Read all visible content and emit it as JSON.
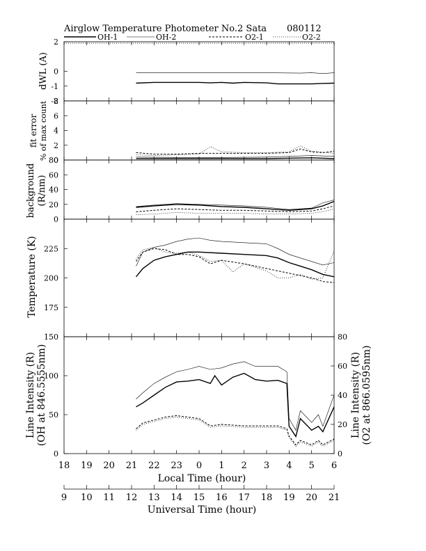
{
  "header": {
    "title": "Airglow Temperature Photometer No.2  Sata",
    "date": "080112"
  },
  "legend": [
    {
      "name": "OH-1",
      "style": "solid-thick",
      "color": "#000000"
    },
    {
      "name": "OH-2",
      "style": "solid-thin",
      "color": "#000000"
    },
    {
      "name": "O2-1",
      "style": "dashed",
      "color": "#000000"
    },
    {
      "name": "O2-2",
      "style": "dotted",
      "color": "#000000"
    }
  ],
  "axes": {
    "local_time": {
      "label": "Local Time (hour)",
      "ticks": [
        "18",
        "19",
        "20",
        "21",
        "22",
        "23",
        "0",
        "1",
        "2",
        "3",
        "4",
        "5",
        "6"
      ]
    },
    "universal_time": {
      "label": "Universal Time (hour)",
      "ticks": [
        "9",
        "10",
        "11",
        "12",
        "13",
        "14",
        "15",
        "16",
        "17",
        "18",
        "19",
        "20",
        "21"
      ]
    }
  },
  "chart_data": [
    {
      "type": "line",
      "id": "dwl",
      "ylabel": "dWL (A)",
      "ylim": [
        -2,
        2
      ],
      "yticks": [
        "2",
        "0",
        "-1",
        "-2"
      ],
      "ytick_values": [
        2,
        0,
        -1,
        -2
      ],
      "x_unit": "UT hour",
      "xlim": [
        9,
        21
      ],
      "series": [
        {
          "name": "OH-1",
          "x": [
            12.2,
            13,
            14,
            15,
            15.5,
            16,
            16.5,
            17,
            18,
            18.5,
            19,
            20,
            20.5,
            21
          ],
          "y": [
            -0.8,
            -0.75,
            -0.75,
            -0.75,
            -0.78,
            -0.75,
            -0.8,
            -0.75,
            -0.78,
            -0.85,
            -0.85,
            -0.85,
            -0.82,
            -0.8
          ]
        },
        {
          "name": "OH-2",
          "x": [
            12.2,
            14,
            16,
            18,
            19.5,
            20,
            20.5,
            21
          ],
          "y": [
            -0.1,
            -0.1,
            -0.1,
            -0.1,
            -0.12,
            -0.1,
            -0.15,
            -0.1
          ]
        },
        {
          "name": "O2-1",
          "x": [
            9,
            21
          ],
          "y": [
            2,
            2
          ]
        },
        {
          "name": "O2-2",
          "x": [
            9,
            21
          ],
          "y": [
            1.9,
            1.9
          ]
        }
      ]
    },
    {
      "type": "line",
      "id": "fit",
      "ylabel": "fit error",
      "ylabel2": "% of max count",
      "ylim": [
        0,
        8
      ],
      "yticks": [
        "8",
        "6",
        "4",
        "2",
        "0"
      ],
      "ytick_values": [
        8,
        6,
        4,
        2,
        0
      ],
      "x_unit": "UT hour",
      "xlim": [
        9,
        21
      ],
      "series": [
        {
          "name": "OH-1",
          "x": [
            12.2,
            14,
            16,
            18,
            19,
            20,
            21
          ],
          "y": [
            0.2,
            0.2,
            0.2,
            0.2,
            0.25,
            0.3,
            0.2
          ]
        },
        {
          "name": "OH-2",
          "x": [
            12.2,
            14,
            16,
            18,
            19,
            20,
            21
          ],
          "y": [
            0.4,
            0.35,
            0.35,
            0.4,
            0.5,
            0.6,
            0.5
          ]
        },
        {
          "name": "O2-1",
          "x": [
            12.2,
            13,
            14,
            15,
            16,
            17,
            18,
            19,
            19.5,
            20,
            20.5,
            21
          ],
          "y": [
            1,
            0.8,
            0.8,
            0.9,
            0.9,
            0.9,
            0.9,
            1.0,
            1.5,
            1.1,
            1.0,
            1.2
          ]
        },
        {
          "name": "O2-2",
          "x": [
            12.2,
            13,
            14,
            15,
            15.5,
            16,
            17,
            18,
            19,
            19.5,
            20,
            21
          ],
          "y": [
            0.7,
            0.6,
            0.7,
            0.8,
            1.8,
            1.1,
            1.0,
            1.0,
            1.1,
            1.9,
            1.2,
            0.9
          ]
        }
      ]
    },
    {
      "type": "line",
      "id": "bg",
      "ylabel": "background",
      "ylabel2": "(R/nm)",
      "ylim": [
        0,
        80
      ],
      "yticks": [
        "80",
        "60",
        "40",
        "20",
        "0"
      ],
      "ytick_values": [
        80,
        60,
        40,
        20,
        0
      ],
      "x_unit": "UT hour",
      "xlim": [
        9,
        21
      ],
      "series": [
        {
          "name": "OH-1",
          "x": [
            12.2,
            13,
            14,
            15,
            16,
            17,
            18,
            19,
            20,
            20.5,
            21
          ],
          "y": [
            16,
            18,
            20,
            19,
            17,
            16,
            14,
            12,
            14,
            18,
            24
          ]
        },
        {
          "name": "OH-2",
          "x": [
            12.2,
            13,
            14,
            15,
            16,
            17,
            18,
            19,
            20,
            20.5,
            21
          ],
          "y": [
            17,
            19,
            21,
            20,
            19,
            18,
            16,
            13,
            15,
            22,
            26
          ]
        },
        {
          "name": "O2-1",
          "x": [
            12.2,
            13,
            14,
            15,
            16,
            17,
            18,
            19,
            20,
            20.5,
            21
          ],
          "y": [
            10,
            12,
            14,
            13,
            12,
            12,
            11,
            10,
            11,
            14,
            18
          ]
        },
        {
          "name": "O2-2",
          "x": [
            12.2,
            13,
            14,
            15,
            16,
            17,
            18,
            19,
            20,
            20.5,
            21
          ],
          "y": [
            6,
            7,
            9,
            8,
            8,
            8,
            7,
            7,
            8,
            10,
            14
          ]
        }
      ]
    },
    {
      "type": "line",
      "id": "temp",
      "ylabel": "Temperature (K)",
      "ylim": [
        150,
        250
      ],
      "yticks": [
        "225",
        "200",
        "175"
      ],
      "ytick_values": [
        225,
        200,
        175
      ],
      "x_unit": "UT hour",
      "xlim": [
        9,
        21
      ],
      "series": [
        {
          "name": "OH-1",
          "x": [
            12.2,
            12.5,
            13,
            13.5,
            14,
            14.5,
            15,
            16,
            17,
            18,
            18.5,
            19,
            19.5,
            20,
            20.5,
            21
          ],
          "y": [
            201,
            208,
            215,
            218,
            220,
            222,
            222,
            221,
            220,
            219,
            217,
            213,
            210,
            207,
            203,
            201
          ]
        },
        {
          "name": "OH-2",
          "x": [
            12.2,
            12.5,
            13,
            13.5,
            14,
            14.5,
            15,
            15.5,
            16,
            17,
            18,
            18.5,
            19,
            19.5,
            20,
            20.5,
            21
          ],
          "y": [
            210,
            222,
            226,
            228,
            231,
            233,
            234,
            232,
            231,
            230,
            229,
            225,
            220,
            217,
            214,
            211,
            213
          ]
        },
        {
          "name": "O2-1",
          "x": [
            12.2,
            12.5,
            13,
            13.5,
            14,
            14.5,
            15,
            15.5,
            16,
            17,
            18,
            18.5,
            19,
            19.5,
            20,
            20.5,
            21
          ],
          "y": [
            214,
            222,
            225,
            224,
            220,
            220,
            218,
            212,
            215,
            212,
            208,
            206,
            204,
            202,
            200,
            197,
            196
          ]
        },
        {
          "name": "O2-2",
          "x": [
            12.2,
            12.5,
            13,
            13.5,
            14,
            14.5,
            15,
            15.5,
            16,
            16.5,
            17,
            18,
            18.5,
            19,
            19.5,
            20,
            20.5,
            21
          ],
          "y": [
            216,
            224,
            226,
            222,
            221,
            222,
            219,
            214,
            215,
            205,
            212,
            206,
            200,
            200,
            203,
            199,
            200,
            223
          ]
        }
      ]
    },
    {
      "type": "line",
      "id": "intensity",
      "ylabel": "Line Intensity (R)",
      "ylabel2": "(OH at 846.5555nm)",
      "ylabel_right": "Line Intensity (R)",
      "ylabel_right2": "(O2 at 866.0595nm)",
      "ylim": [
        0,
        150
      ],
      "yticks": [
        "150",
        "100",
        "50",
        "0"
      ],
      "ytick_values": [
        150,
        100,
        50,
        0
      ],
      "ylim_right": [
        0,
        80
      ],
      "yticks_right": [
        "80",
        "60",
        "40",
        "20",
        "0"
      ],
      "ytick_values_right": [
        80,
        60,
        40,
        20,
        0
      ],
      "x_unit": "UT hour",
      "xlim": [
        9,
        21
      ],
      "series": [
        {
          "name": "OH-1",
          "axis": "left",
          "x": [
            12.2,
            12.5,
            13,
            13.5,
            14,
            14.5,
            15,
            15.5,
            15.7,
            16,
            16.5,
            17,
            17.5,
            18,
            18.5,
            18.9,
            19,
            19.3,
            19.5,
            20,
            20.3,
            20.5,
            21
          ],
          "y": [
            60,
            65,
            75,
            85,
            92,
            93,
            95,
            90,
            100,
            88,
            98,
            103,
            95,
            93,
            94,
            90,
            35,
            22,
            45,
            30,
            35,
            28,
            60
          ]
        },
        {
          "name": "OH-2",
          "axis": "left",
          "x": [
            12.2,
            12.5,
            13,
            13.5,
            14,
            14.5,
            15,
            15.5,
            16,
            16.5,
            17,
            17.5,
            18,
            18.5,
            18.9,
            19,
            19.3,
            19.5,
            20,
            20.3,
            20.5,
            21
          ],
          "y": [
            70,
            78,
            90,
            98,
            105,
            108,
            112,
            108,
            110,
            115,
            118,
            112,
            112,
            112,
            105,
            45,
            30,
            55,
            40,
            50,
            35,
            75
          ]
        },
        {
          "name": "O2-1",
          "axis": "right",
          "x": [
            12.2,
            12.5,
            13,
            13.5,
            14,
            14.5,
            15,
            15.5,
            16,
            17,
            18,
            18.5,
            18.9,
            19,
            19.3,
            19.5,
            20,
            20.3,
            20.5,
            21
          ],
          "y": [
            17,
            21,
            23,
            25,
            26,
            25,
            24,
            19,
            20,
            19,
            19,
            19,
            17,
            12,
            6,
            9,
            6,
            9,
            6,
            10
          ]
        },
        {
          "name": "O2-2",
          "axis": "right",
          "x": [
            12.2,
            12.5,
            13,
            13.5,
            14,
            14.5,
            15,
            15.5,
            16,
            17,
            18,
            18.5,
            18.9,
            19,
            19.3,
            19.5,
            20,
            20.3,
            20.5,
            21
          ],
          "y": [
            16,
            20,
            22,
            24,
            25,
            24,
            23,
            18,
            19,
            18,
            18,
            18,
            16,
            11,
            5,
            8,
            5,
            8,
            5,
            9
          ]
        }
      ]
    }
  ]
}
